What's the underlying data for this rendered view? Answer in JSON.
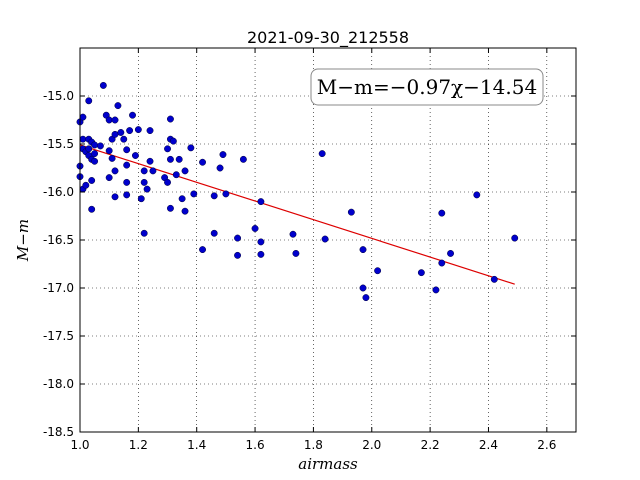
{
  "chart_data": {
    "type": "scatter",
    "title": "2021-09-30_212558",
    "xlabel": "airmass",
    "ylabel": "M−m",
    "annotation": "M−m=−0.97χ−14.54",
    "xlim": [
      1.0,
      2.7
    ],
    "ylim": [
      -18.5,
      -14.5
    ],
    "y_inverted": true,
    "grid": true,
    "x_ticks": [
      "1.0",
      "1.2",
      "1.4",
      "1.6",
      "1.8",
      "2.0",
      "2.2",
      "2.4",
      "2.6"
    ],
    "y_ticks": [
      "-15.0",
      "-15.5",
      "-16.0",
      "-16.5",
      "-17.0",
      "-17.5",
      "-18.0",
      "-18.5"
    ],
    "colors": {
      "points": "#0000cc",
      "fit": "#dd0000"
    },
    "fit_line": {
      "x": [
        1.0,
        2.49
      ],
      "y": [
        -15.51,
        -16.96
      ]
    },
    "points": [
      [
        1.0,
        -15.27
      ],
      [
        1.0,
        -15.73
      ],
      [
        1.0,
        -15.84
      ],
      [
        1.01,
        -15.22
      ],
      [
        1.01,
        -15.45
      ],
      [
        1.01,
        -15.55
      ],
      [
        1.01,
        -15.97
      ],
      [
        1.02,
        -15.58
      ],
      [
        1.02,
        -15.93
      ],
      [
        1.03,
        -15.05
      ],
      [
        1.03,
        -15.45
      ],
      [
        1.03,
        -15.55
      ],
      [
        1.03,
        -15.62
      ],
      [
        1.04,
        -15.66
      ],
      [
        1.04,
        -15.48
      ],
      [
        1.04,
        -15.88
      ],
      [
        1.04,
        -16.18
      ],
      [
        1.05,
        -15.6
      ],
      [
        1.05,
        -15.51
      ],
      [
        1.05,
        -15.68
      ],
      [
        1.07,
        -15.52
      ],
      [
        1.08,
        -14.89
      ],
      [
        1.09,
        -15.2
      ],
      [
        1.1,
        -15.25
      ],
      [
        1.1,
        -15.57
      ],
      [
        1.1,
        -15.85
      ],
      [
        1.11,
        -15.45
      ],
      [
        1.11,
        -15.65
      ],
      [
        1.12,
        -15.4
      ],
      [
        1.12,
        -15.25
      ],
      [
        1.12,
        -15.78
      ],
      [
        1.12,
        -16.05
      ],
      [
        1.13,
        -15.1
      ],
      [
        1.14,
        -15.38
      ],
      [
        1.15,
        -15.45
      ],
      [
        1.16,
        -15.56
      ],
      [
        1.16,
        -15.72
      ],
      [
        1.16,
        -15.9
      ],
      [
        1.16,
        -16.03
      ],
      [
        1.17,
        -15.36
      ],
      [
        1.18,
        -15.2
      ],
      [
        1.19,
        -15.62
      ],
      [
        1.2,
        -15.35
      ],
      [
        1.21,
        -16.07
      ],
      [
        1.22,
        -15.78
      ],
      [
        1.22,
        -15.9
      ],
      [
        1.22,
        -16.43
      ],
      [
        1.23,
        -15.97
      ],
      [
        1.24,
        -15.36
      ],
      [
        1.24,
        -15.68
      ],
      [
        1.25,
        -15.78
      ],
      [
        1.29,
        -15.85
      ],
      [
        1.3,
        -15.9
      ],
      [
        1.3,
        -15.55
      ],
      [
        1.31,
        -15.24
      ],
      [
        1.31,
        -15.45
      ],
      [
        1.31,
        -15.66
      ],
      [
        1.31,
        -16.17
      ],
      [
        1.32,
        -15.47
      ],
      [
        1.33,
        -15.82
      ],
      [
        1.34,
        -15.66
      ],
      [
        1.35,
        -16.07
      ],
      [
        1.36,
        -16.2
      ],
      [
        1.36,
        -15.78
      ],
      [
        1.38,
        -15.54
      ],
      [
        1.39,
        -16.02
      ],
      [
        1.42,
        -15.69
      ],
      [
        1.42,
        -16.6
      ],
      [
        1.46,
        -16.04
      ],
      [
        1.46,
        -16.43
      ],
      [
        1.48,
        -15.75
      ],
      [
        1.49,
        -15.61
      ],
      [
        1.5,
        -16.02
      ],
      [
        1.54,
        -16.48
      ],
      [
        1.54,
        -16.66
      ],
      [
        1.56,
        -15.66
      ],
      [
        1.6,
        -16.38
      ],
      [
        1.62,
        -16.1
      ],
      [
        1.62,
        -16.52
      ],
      [
        1.62,
        -16.65
      ],
      [
        1.73,
        -16.44
      ],
      [
        1.74,
        -16.64
      ],
      [
        1.83,
        -15.6
      ],
      [
        1.84,
        -16.49
      ],
      [
        1.93,
        -16.21
      ],
      [
        1.97,
        -16.6
      ],
      [
        1.97,
        -17.0
      ],
      [
        1.98,
        -17.1
      ],
      [
        2.02,
        -16.82
      ],
      [
        2.17,
        -16.84
      ],
      [
        2.22,
        -17.02
      ],
      [
        2.24,
        -16.22
      ],
      [
        2.24,
        -16.74
      ],
      [
        2.27,
        -16.64
      ],
      [
        2.36,
        -16.03
      ],
      [
        2.42,
        -16.91
      ],
      [
        2.49,
        -16.48
      ]
    ]
  }
}
